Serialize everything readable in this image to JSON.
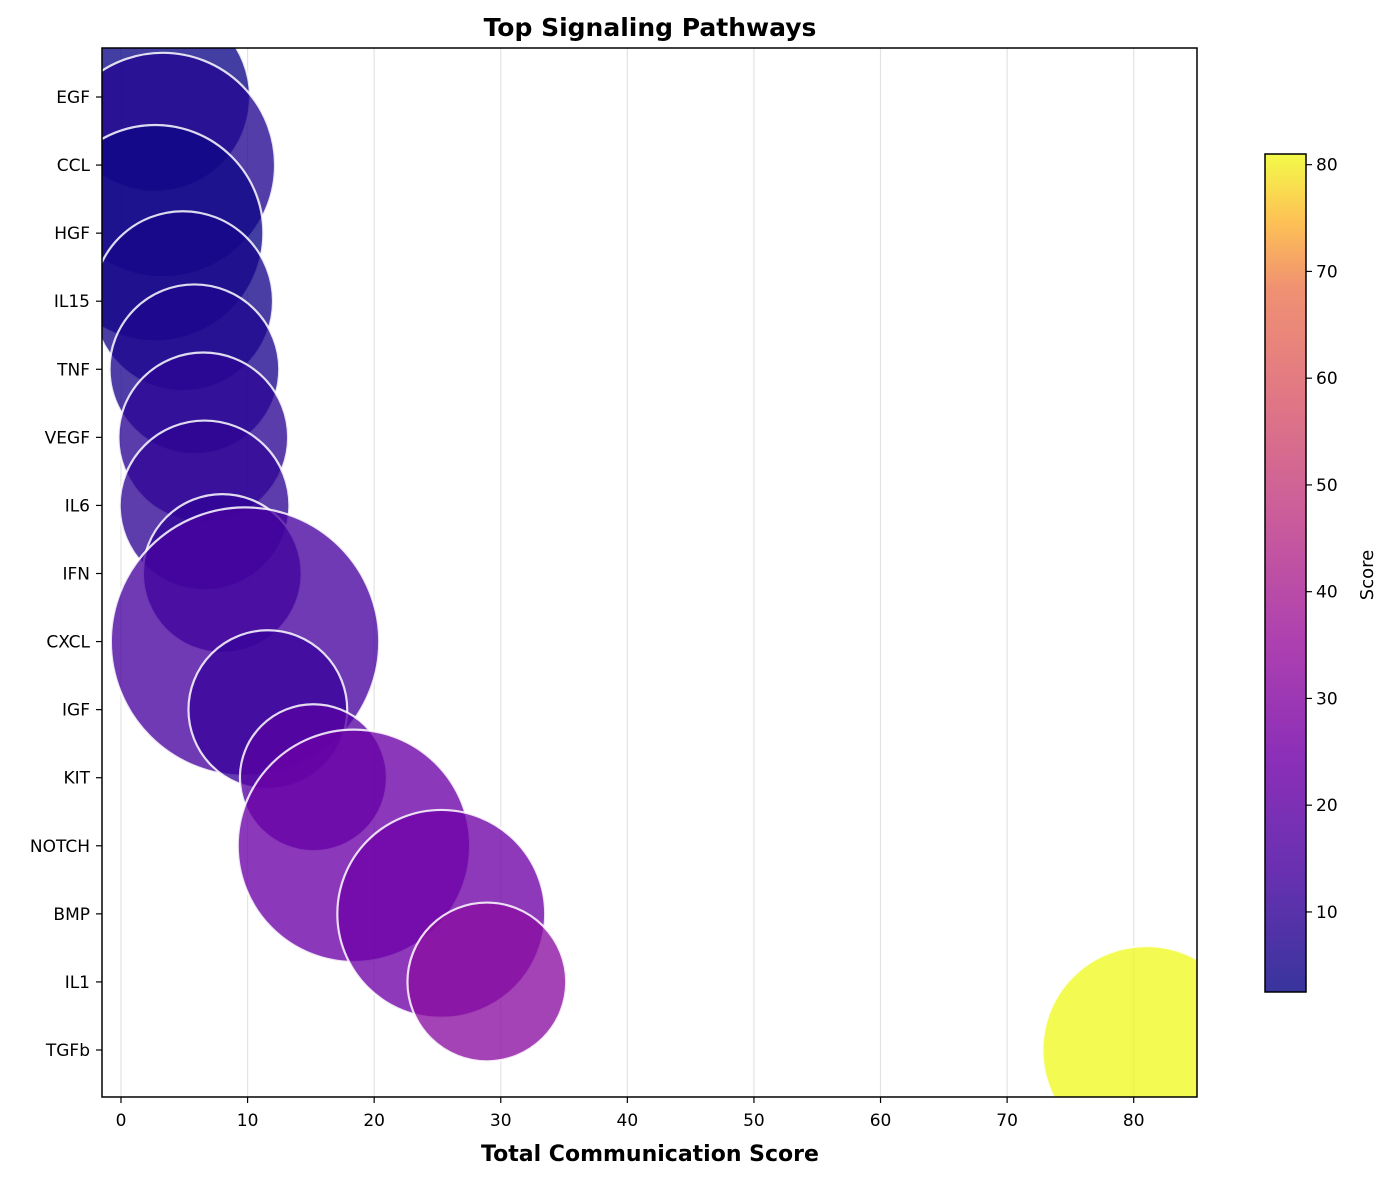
{
  "chart_data": {
    "type": "scatter",
    "title": "Top Signaling Pathways",
    "xlabel": "Total Communication Score",
    "ylabel": "",
    "xlim": [
      -1.5,
      85
    ],
    "xticks": [
      0,
      10,
      20,
      30,
      40,
      50,
      60,
      70,
      80
    ],
    "grid": "x",
    "categories": [
      "EGF",
      "CCL",
      "HGF",
      "IL15",
      "TNF",
      "VEGF",
      "IL6",
      "IFN",
      "CXCL",
      "IGF",
      "KIT",
      "NOTCH",
      "BMP",
      "IL1",
      "TGFb"
    ],
    "series": [
      {
        "x": 2.7,
        "size": 10,
        "score": 2.7
      },
      {
        "x": 3.3,
        "size": 14,
        "score": 6.5
      },
      {
        "x": 2.7,
        "size": 13,
        "score": 2.7
      },
      {
        "x": 4.9,
        "size": 9,
        "score": 4.5
      },
      {
        "x": 5.8,
        "size": 8,
        "score": 5.8
      },
      {
        "x": 6.5,
        "size": 8,
        "score": 8.5
      },
      {
        "x": 6.6,
        "size": 8,
        "score": 9.0
      },
      {
        "x": 8.0,
        "size": 7,
        "score": 9.5
      },
      {
        "x": 9.8,
        "size": 20,
        "score": 13.5
      },
      {
        "x": 11.6,
        "size": 7,
        "score": 11.0
      },
      {
        "x": 15.2,
        "size": 6,
        "score": 17.5
      },
      {
        "x": 18.4,
        "size": 15,
        "score": 22.5
      },
      {
        "x": 25.3,
        "size": 12,
        "score": 23.5
      },
      {
        "x": 28.9,
        "size": 7,
        "score": 31.0
      },
      {
        "x": 81.0,
        "size": 12,
        "score": 81.0
      }
    ],
    "colorbar": {
      "label": "Score",
      "colormap": "plasma",
      "range": [
        2.5,
        81
      ],
      "ticks": [
        10,
        20,
        30,
        40,
        50,
        60,
        70,
        80
      ]
    }
  }
}
